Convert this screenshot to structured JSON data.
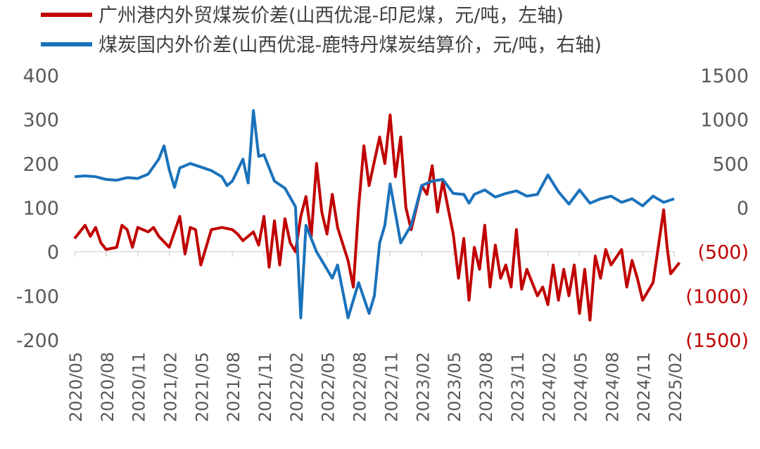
{
  "chart_data": {
    "type": "line",
    "legend": [
      {
        "label": "广州港内外贸煤炭价差(山西优混-印尼煤，元/吨，左轴)",
        "color": "#C00000"
      },
      {
        "label": "煤炭国内外价差(山西优混-鹿特丹煤炭结算价，元/吨，右轴)",
        "color": "#1A72BB"
      }
    ],
    "legend_position": "top-left",
    "grid": false,
    "x_tick_labels": [
      "2020/05",
      "2020/08",
      "2020/11",
      "2021/02",
      "2021/05",
      "2021/08",
      "2021/11",
      "2022/02",
      "2022/05",
      "2022/08",
      "2022/11",
      "2023/02",
      "2023/05",
      "2023/08",
      "2023/11",
      "2024/02",
      "2024/05",
      "2024/08",
      "2024/11",
      "2025/02"
    ],
    "x_range": [
      "2020/05",
      "2025/02"
    ],
    "left_axis": {
      "ylim": [
        -200,
        400
      ],
      "tick_labels": [
        "-200",
        "-100",
        "0",
        "100",
        "200",
        "300",
        "400"
      ],
      "color": "#595959"
    },
    "right_axis": {
      "ylim": [
        -1500,
        1500
      ],
      "tick_labels": [
        "(1500)",
        "(1000)",
        "(500)",
        "0",
        "500",
        "1000",
        "1500"
      ],
      "negative_color": "#C00000",
      "color": "#595959"
    },
    "series": [
      {
        "name": "广州港内外贸煤炭价差(山西优混-印尼煤，元/吨，左轴)",
        "axis": "left",
        "color": "#C00000",
        "points": [
          [
            "2020/05",
            30
          ],
          [
            "2020/06",
            60
          ],
          [
            "2020/06",
            35
          ],
          [
            "2020/07",
            55
          ],
          [
            "2020/07",
            20
          ],
          [
            "2020/08",
            5
          ],
          [
            "2020/09",
            10
          ],
          [
            "2020/09",
            60
          ],
          [
            "2020/10",
            50
          ],
          [
            "2020/10",
            10
          ],
          [
            "2020/11",
            55
          ],
          [
            "2020/12",
            45
          ],
          [
            "2020/12",
            55
          ],
          [
            "2021/01",
            35
          ],
          [
            "2021/02",
            10
          ],
          [
            "2021/03",
            80
          ],
          [
            "2021/03",
            -5
          ],
          [
            "2021/04",
            55
          ],
          [
            "2021/04",
            50
          ],
          [
            "2021/05",
            -30
          ],
          [
            "2021/06",
            50
          ],
          [
            "2021/07",
            55
          ],
          [
            "2021/08",
            50
          ],
          [
            "2021/08",
            40
          ],
          [
            "2021/09",
            25
          ],
          [
            "2021/10",
            45
          ],
          [
            "2021/10",
            15
          ],
          [
            "2021/11",
            80
          ],
          [
            "2021/11",
            -35
          ],
          [
            "2021/12",
            70
          ],
          [
            "2021/12",
            -30
          ],
          [
            "2022/01",
            75
          ],
          [
            "2022/01",
            20
          ],
          [
            "2022/02",
            0
          ],
          [
            "2022/02",
            80
          ],
          [
            "2022/03",
            125
          ],
          [
            "2022/03",
            35
          ],
          [
            "2022/04",
            200
          ],
          [
            "2022/04",
            90
          ],
          [
            "2022/05",
            40
          ],
          [
            "2022/05",
            130
          ],
          [
            "2022/06",
            55
          ],
          [
            "2022/07",
            -20
          ],
          [
            "2022/07",
            -80
          ],
          [
            "2022/08",
            100
          ],
          [
            "2022/08",
            240
          ],
          [
            "2022/09",
            150
          ],
          [
            "2022/10",
            260
          ],
          [
            "2022/10",
            200
          ],
          [
            "2022/11",
            310
          ],
          [
            "2022/11",
            170
          ],
          [
            "2022/12",
            260
          ],
          [
            "2022/12",
            100
          ],
          [
            "2023/01",
            50
          ],
          [
            "2023/02",
            150
          ],
          [
            "2023/02",
            130
          ],
          [
            "2023/03",
            195
          ],
          [
            "2023/03",
            90
          ],
          [
            "2023/04",
            160
          ],
          [
            "2023/04",
            100
          ],
          [
            "2023/05",
            40
          ],
          [
            "2023/05",
            -60
          ],
          [
            "2023/06",
            30
          ],
          [
            "2023/06",
            -110
          ],
          [
            "2023/07",
            10
          ],
          [
            "2023/07",
            -40
          ],
          [
            "2023/08",
            60
          ],
          [
            "2023/08",
            -80
          ],
          [
            "2023/09",
            15
          ],
          [
            "2023/09",
            -60
          ],
          [
            "2023/10",
            -30
          ],
          [
            "2023/10",
            -80
          ],
          [
            "2023/11",
            50
          ],
          [
            "2023/11",
            -85
          ],
          [
            "2023/12",
            -40
          ],
          [
            "2024/01",
            -100
          ],
          [
            "2024/01",
            -80
          ],
          [
            "2024/02",
            -120
          ],
          [
            "2024/02",
            -30
          ],
          [
            "2024/03",
            -110
          ],
          [
            "2024/03",
            -40
          ],
          [
            "2024/04",
            -100
          ],
          [
            "2024/04",
            -30
          ],
          [
            "2024/05",
            -140
          ],
          [
            "2024/05",
            -40
          ],
          [
            "2024/06",
            -155
          ],
          [
            "2024/06",
            -10
          ],
          [
            "2024/07",
            -60
          ],
          [
            "2024/07",
            5
          ],
          [
            "2024/08",
            -30
          ],
          [
            "2024/09",
            5
          ],
          [
            "2024/09",
            -80
          ],
          [
            "2024/10",
            -20
          ],
          [
            "2024/10",
            -60
          ],
          [
            "2024/11",
            -110
          ],
          [
            "2024/12",
            -70
          ],
          [
            "2025/01",
            95
          ],
          [
            "2025/01",
            10
          ],
          [
            "2025/01",
            -50
          ],
          [
            "2025/02",
            -40
          ],
          [
            "2025/02",
            -25
          ]
        ]
      },
      {
        "name": "煤炭国内外价差(山西优混-鹿特丹煤炭结算价，元/吨，右轴)",
        "axis": "right",
        "color": "#1A72BB",
        "points": [
          [
            "2020/05",
            350
          ],
          [
            "2020/06",
            360
          ],
          [
            "2020/07",
            350
          ],
          [
            "2020/08",
            320
          ],
          [
            "2020/09",
            310
          ],
          [
            "2020/10",
            340
          ],
          [
            "2020/11",
            330
          ],
          [
            "2020/12",
            380
          ],
          [
            "2021/01",
            550
          ],
          [
            "2021/01",
            700
          ],
          [
            "2021/02",
            430
          ],
          [
            "2021/02",
            230
          ],
          [
            "2021/03",
            450
          ],
          [
            "2021/04",
            500
          ],
          [
            "2021/05",
            460
          ],
          [
            "2021/06",
            420
          ],
          [
            "2021/07",
            350
          ],
          [
            "2021/07",
            250
          ],
          [
            "2021/08",
            300
          ],
          [
            "2021/09",
            550
          ],
          [
            "2021/09",
            280
          ],
          [
            "2021/10",
            1100
          ],
          [
            "2021/10",
            580
          ],
          [
            "2021/11",
            600
          ],
          [
            "2021/12",
            300
          ],
          [
            "2022/01",
            220
          ],
          [
            "2022/02",
            10
          ],
          [
            "2022/02",
            -1250
          ],
          [
            "2022/03",
            -200
          ],
          [
            "2022/04",
            -500
          ],
          [
            "2022/05",
            -700
          ],
          [
            "2022/05",
            -800
          ],
          [
            "2022/06",
            -650
          ],
          [
            "2022/07",
            -1250
          ],
          [
            "2022/08",
            -850
          ],
          [
            "2022/09",
            -1200
          ],
          [
            "2022/09",
            -1000
          ],
          [
            "2022/10",
            -400
          ],
          [
            "2022/10",
            -200
          ],
          [
            "2022/11",
            270
          ],
          [
            "2022/12",
            -400
          ],
          [
            "2023/01",
            -200
          ],
          [
            "2023/02",
            250
          ],
          [
            "2023/03",
            300
          ],
          [
            "2023/04",
            320
          ],
          [
            "2023/05",
            160
          ],
          [
            "2023/06",
            150
          ],
          [
            "2023/06",
            50
          ],
          [
            "2023/07",
            150
          ],
          [
            "2023/08",
            200
          ],
          [
            "2023/09",
            120
          ],
          [
            "2023/10",
            160
          ],
          [
            "2023/11",
            190
          ],
          [
            "2023/12",
            130
          ],
          [
            "2024/01",
            150
          ],
          [
            "2024/02",
            370
          ],
          [
            "2024/03",
            180
          ],
          [
            "2024/04",
            40
          ],
          [
            "2024/05",
            200
          ],
          [
            "2024/06",
            50
          ],
          [
            "2024/07",
            100
          ],
          [
            "2024/08",
            130
          ],
          [
            "2024/09",
            60
          ],
          [
            "2024/10",
            100
          ],
          [
            "2024/11",
            20
          ],
          [
            "2024/12",
            130
          ],
          [
            "2025/01",
            60
          ],
          [
            "2025/02",
            100
          ]
        ]
      }
    ]
  }
}
